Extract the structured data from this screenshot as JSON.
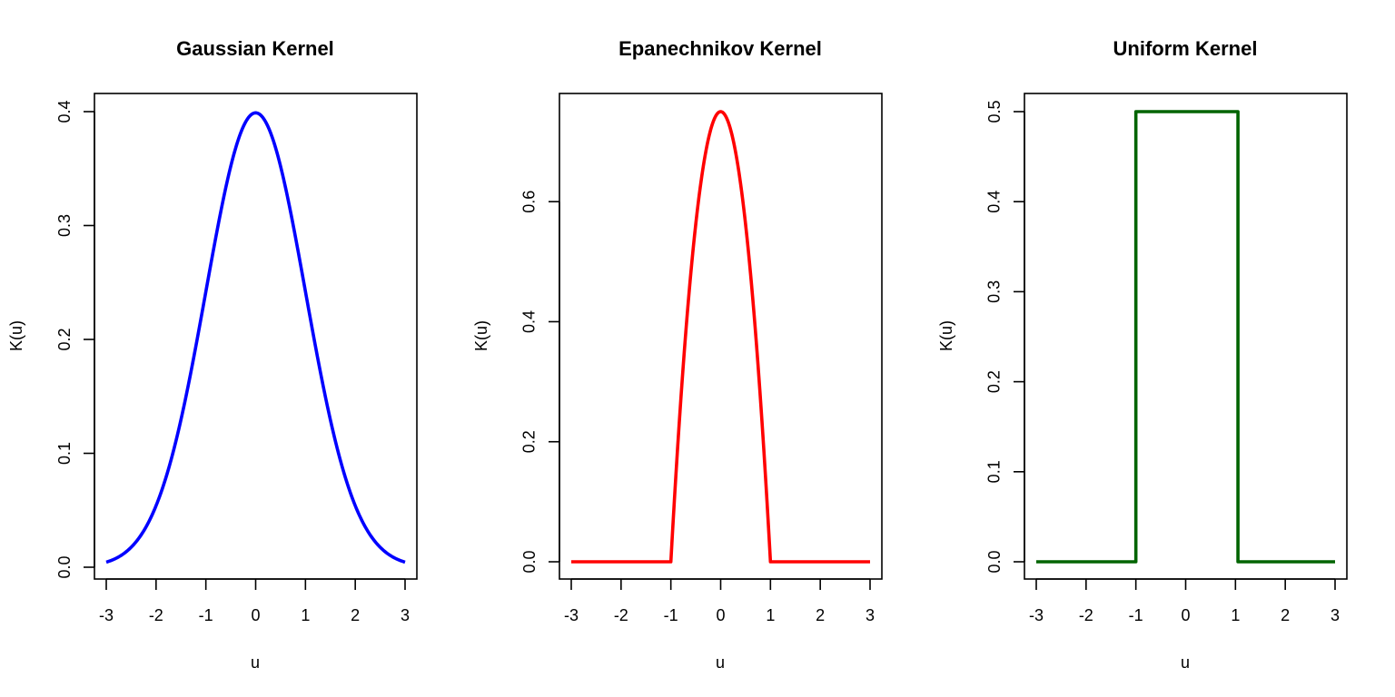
{
  "chart_data": [
    {
      "type": "line",
      "title": "Gaussian Kernel",
      "xlabel": "u",
      "ylabel": "K(u)",
      "xlim": [
        -3,
        3
      ],
      "ylim": [
        0,
        0.4
      ],
      "x_ticks": [
        -3,
        -2,
        -1,
        0,
        1,
        2,
        3
      ],
      "y_ticks": [
        0.0,
        0.1,
        0.2,
        0.3,
        0.4
      ],
      "y_tick_labels": [
        "0.0",
        "0.1",
        "0.2",
        "0.3",
        "0.4"
      ],
      "grid": false,
      "color": "#0000ff",
      "series": [
        {
          "x": [
            -3,
            -2.5,
            -2,
            -1.5,
            -1,
            -0.5,
            0,
            0.5,
            1,
            1.5,
            2,
            2.5,
            3
          ],
          "y": [
            0.0044,
            0.0175,
            0.054,
            0.1295,
            0.242,
            0.3521,
            0.3989,
            0.3521,
            0.242,
            0.1295,
            0.054,
            0.0175,
            0.0044
          ]
        }
      ]
    },
    {
      "type": "line",
      "title": "Epanechnikov Kernel",
      "xlabel": "u",
      "ylabel": "K(u)",
      "xlim": [
        -3,
        3
      ],
      "ylim": [
        0,
        0.75
      ],
      "x_ticks": [
        -3,
        -2,
        -1,
        0,
        1,
        2,
        3
      ],
      "y_ticks": [
        0.0,
        0.2,
        0.4,
        0.6
      ],
      "y_tick_labels": [
        "0.0",
        "0.2",
        "0.4",
        "0.6"
      ],
      "grid": false,
      "color": "#ff0000",
      "series": [
        {
          "x": [
            -3,
            -1,
            -0.75,
            -0.5,
            -0.25,
            0,
            0.25,
            0.5,
            0.75,
            1,
            3
          ],
          "y": [
            0,
            0,
            0.328,
            0.5625,
            0.703,
            0.75,
            0.703,
            0.5625,
            0.328,
            0,
            0
          ]
        }
      ]
    },
    {
      "type": "line",
      "title": "Uniform Kernel",
      "xlabel": "u",
      "ylabel": "K(u)",
      "xlim": [
        -3,
        3
      ],
      "ylim": [
        0,
        0.5
      ],
      "x_ticks": [
        -3,
        -2,
        -1,
        0,
        1,
        2,
        3
      ],
      "y_ticks": [
        0.0,
        0.1,
        0.2,
        0.3,
        0.4,
        0.5
      ],
      "y_tick_labels": [
        "0.0",
        "0.1",
        "0.2",
        "0.3",
        "0.4",
        "0.5"
      ],
      "grid": false,
      "color": "#006400",
      "series": [
        {
          "x": [
            -3,
            -1,
            -1,
            1,
            1,
            3
          ],
          "y": [
            0,
            0,
            0.5,
            0.5,
            0,
            0
          ]
        }
      ]
    }
  ]
}
